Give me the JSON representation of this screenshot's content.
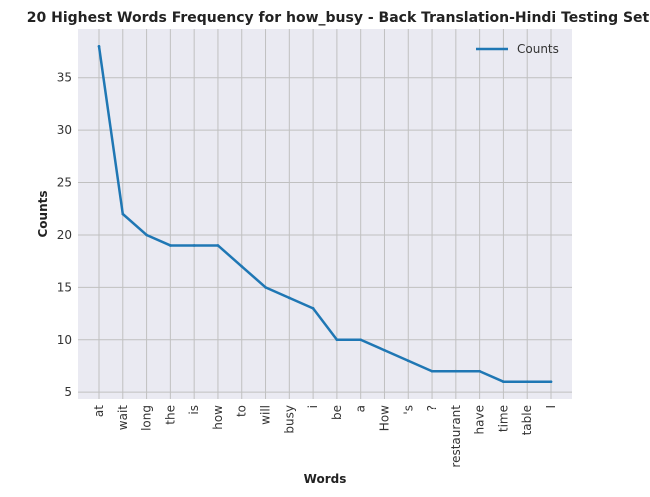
{
  "chart_data": {
    "type": "line",
    "title": "20 Highest Words Frequency for how_busy - Back Translation-Hindi Testing Set",
    "xlabel": "Words",
    "ylabel": "Counts",
    "categories": [
      "at",
      "wait",
      "long",
      "the",
      "is",
      "how",
      "to",
      "will",
      "busy",
      "i",
      "be",
      "a",
      "How",
      "'s",
      "?",
      "restaurant",
      "have",
      "time",
      "table",
      "I"
    ],
    "series": [
      {
        "name": "Counts",
        "values": [
          38,
          22,
          20,
          19,
          19,
          19,
          17,
          15,
          14,
          13,
          10,
          10,
          9,
          8,
          7,
          7,
          7,
          6,
          6,
          6
        ],
        "color": "#1f77b4"
      }
    ],
    "yticks": [
      5,
      10,
      15,
      20,
      25,
      30,
      35
    ],
    "ylim": [
      4.35,
      39.65
    ],
    "grid": true,
    "legend_position": "top-right",
    "background": "#eaeaf2",
    "grid_color": "#c0c0c0"
  }
}
